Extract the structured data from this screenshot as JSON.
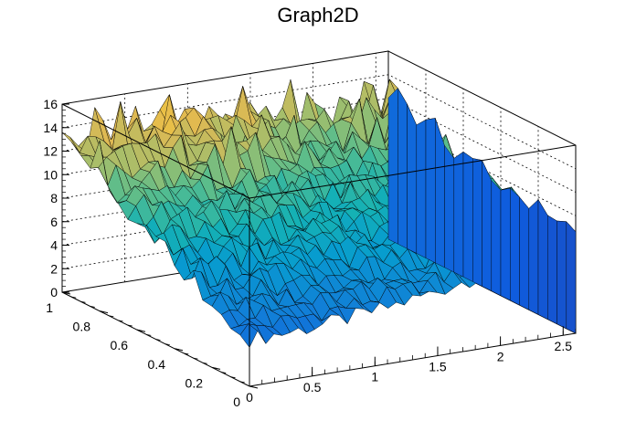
{
  "chart_data": {
    "type": "surface",
    "title": "Graph2D",
    "xlabel": "",
    "ylabel": "",
    "zlabel": "",
    "xlim": [
      0,
      2.6
    ],
    "ylim": [
      0,
      1
    ],
    "zlim": [
      0,
      16
    ],
    "x_ticks": [
      "0",
      "0.5",
      "1",
      "1.5",
      "2",
      "2.5"
    ],
    "y_ticks": [
      "0",
      "0.2",
      "0.4",
      "0.6",
      "0.8",
      "1"
    ],
    "z_ticks": [
      "0",
      "2",
      "4",
      "6",
      "8",
      "10",
      "12",
      "14",
      "16"
    ],
    "grid": true,
    "colormap": "parula",
    "surface_description_points": [
      {
        "x": 0.0,
        "y": 1.0,
        "z": 12.5
      },
      {
        "x": 0.5,
        "y": 1.0,
        "z": 14.5
      },
      {
        "x": 1.0,
        "y": 1.0,
        "z": 15.0
      },
      {
        "x": 1.5,
        "y": 1.0,
        "z": 14.0
      },
      {
        "x": 2.0,
        "y": 1.0,
        "z": 12.0
      },
      {
        "x": 2.6,
        "y": 1.0,
        "z": 10.0
      },
      {
        "x": 0.0,
        "y": 0.0,
        "z": 4.0
      },
      {
        "x": 1.0,
        "y": 0.0,
        "z": 5.0
      },
      {
        "x": 2.0,
        "y": 0.0,
        "z": 8.0
      },
      {
        "x": 2.6,
        "y": 0.0,
        "z": 8.5
      },
      {
        "x": 2.6,
        "y": 0.5,
        "z": 9.5
      }
    ]
  }
}
